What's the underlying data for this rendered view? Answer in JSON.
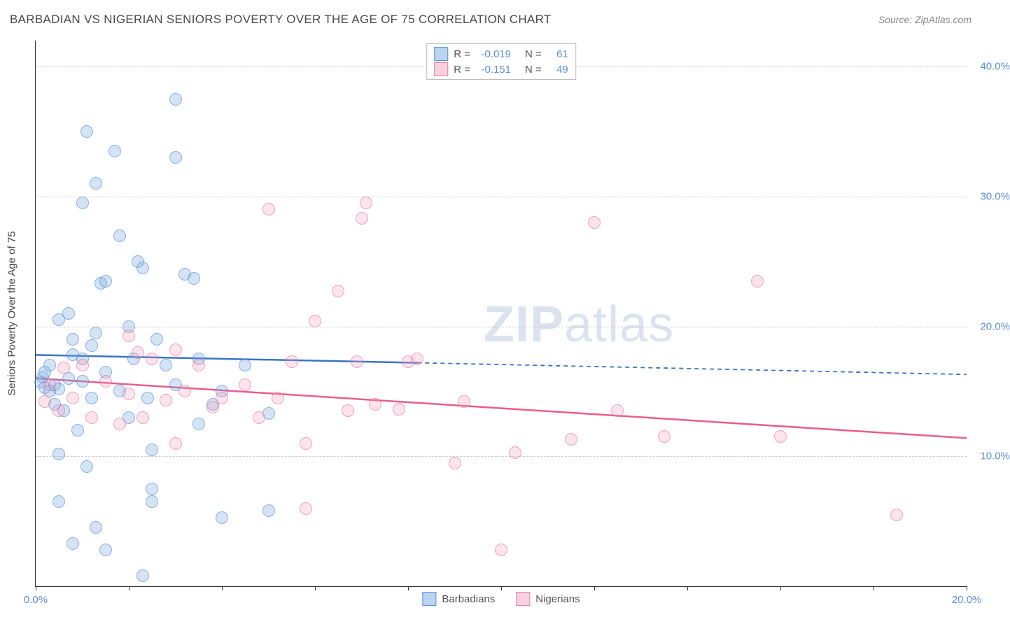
{
  "title": "BARBADIAN VS NIGERIAN SENIORS POVERTY OVER THE AGE OF 75 CORRELATION CHART",
  "source": "Source: ZipAtlas.com",
  "ylabel": "Seniors Poverty Over the Age of 75",
  "watermark_zip": "ZIP",
  "watermark_atlas": "atlas",
  "chart": {
    "type": "scatter",
    "background_color": "#ffffff",
    "grid_color": "#cccccc",
    "axis_color": "#333333",
    "xlim": [
      0,
      20
    ],
    "ylim": [
      0,
      42
    ],
    "xtick_positions": [
      0,
      2,
      4,
      6,
      8,
      10,
      12,
      14,
      16,
      18,
      20
    ],
    "xtick_labels": {
      "0": "0.0%",
      "20": "20.0%"
    },
    "ytick_positions": [
      10,
      20,
      30,
      40
    ],
    "ytick_labels": {
      "10": "10.0%",
      "20": "20.0%",
      "30": "30.0%",
      "40": "40.0%"
    },
    "marker_radius": 8,
    "label_fontsize": 15,
    "title_fontsize": 17,
    "axis_label_color": "#5b8fd6",
    "title_color": "#4a4a4a"
  },
  "series": [
    {
      "name": "Barbadians",
      "color_fill": "rgba(120,170,225,0.45)",
      "color_stroke": "#5b8fd6",
      "line_color": "#3b74c4",
      "R": "-0.019",
      "N": "61",
      "regression": {
        "x1": 0,
        "y1": 17.8,
        "x2": 8.2,
        "y2": 17.2,
        "x3": 20,
        "y3": 16.3,
        "dashed_from": 8.2
      },
      "points": [
        [
          0.1,
          15.7
        ],
        [
          0.15,
          16.1
        ],
        [
          0.2,
          15.3
        ],
        [
          0.2,
          16.5
        ],
        [
          0.3,
          15.0
        ],
        [
          0.3,
          17.0
        ],
        [
          0.4,
          14.0
        ],
        [
          0.4,
          15.5
        ],
        [
          0.5,
          15.2
        ],
        [
          0.5,
          20.5
        ],
        [
          0.6,
          13.5
        ],
        [
          0.7,
          16.0
        ],
        [
          0.7,
          21.0
        ],
        [
          0.8,
          19.0
        ],
        [
          0.9,
          12.0
        ],
        [
          1.0,
          17.5
        ],
        [
          1.0,
          29.5
        ],
        [
          1.1,
          35.0
        ],
        [
          1.1,
          9.2
        ],
        [
          1.2,
          14.5
        ],
        [
          1.3,
          19.5
        ],
        [
          1.3,
          31.0
        ],
        [
          1.4,
          23.3
        ],
        [
          1.5,
          23.5
        ],
        [
          1.5,
          16.5
        ],
        [
          1.7,
          33.5
        ],
        [
          1.8,
          15.0
        ],
        [
          1.8,
          27.0
        ],
        [
          2.0,
          20.0
        ],
        [
          2.0,
          13.0
        ],
        [
          2.1,
          17.5
        ],
        [
          2.2,
          25.0
        ],
        [
          2.3,
          24.5
        ],
        [
          2.4,
          14.5
        ],
        [
          2.5,
          10.5
        ],
        [
          2.5,
          6.5
        ],
        [
          2.6,
          19.0
        ],
        [
          2.8,
          17.0
        ],
        [
          3.0,
          15.5
        ],
        [
          3.0,
          33.0
        ],
        [
          3.2,
          24.0
        ],
        [
          3.4,
          23.7
        ],
        [
          3.5,
          12.5
        ],
        [
          3.5,
          17.5
        ],
        [
          3.0,
          37.5
        ],
        [
          3.8,
          14.0
        ],
        [
          4.0,
          15.0
        ],
        [
          4.0,
          5.3
        ],
        [
          0.8,
          3.3
        ],
        [
          1.5,
          2.8
        ],
        [
          2.3,
          0.8
        ],
        [
          2.5,
          7.5
        ],
        [
          0.5,
          6.5
        ],
        [
          4.5,
          17.0
        ],
        [
          5.0,
          5.8
        ],
        [
          5.0,
          13.3
        ],
        [
          1.3,
          4.5
        ],
        [
          0.5,
          10.2
        ],
        [
          0.8,
          17.8
        ],
        [
          1.0,
          15.8
        ],
        [
          1.2,
          18.5
        ]
      ]
    },
    {
      "name": "Nigerians",
      "color_fill": "rgba(245,160,190,0.4)",
      "color_stroke": "#e67ba3",
      "line_color": "#e85d8f",
      "R": "-0.151",
      "N": "49",
      "regression": {
        "x1": 0,
        "y1": 16.0,
        "x2": 20,
        "y2": 11.4,
        "dashed_from": null
      },
      "points": [
        [
          0.2,
          14.2
        ],
        [
          0.3,
          15.5
        ],
        [
          0.5,
          13.5
        ],
        [
          0.6,
          16.8
        ],
        [
          0.8,
          14.5
        ],
        [
          1.0,
          17.0
        ],
        [
          1.2,
          13.0
        ],
        [
          1.5,
          15.8
        ],
        [
          1.8,
          12.5
        ],
        [
          2.0,
          19.3
        ],
        [
          2.2,
          18.0
        ],
        [
          2.3,
          13.0
        ],
        [
          2.5,
          17.5
        ],
        [
          2.8,
          14.3
        ],
        [
          3.0,
          18.2
        ],
        [
          3.2,
          15.0
        ],
        [
          3.5,
          17.0
        ],
        [
          3.8,
          13.8
        ],
        [
          4.0,
          14.5
        ],
        [
          4.5,
          15.5
        ],
        [
          4.8,
          13.0
        ],
        [
          5.0,
          29.0
        ],
        [
          5.2,
          14.5
        ],
        [
          5.5,
          17.3
        ],
        [
          5.8,
          11.0
        ],
        [
          6.0,
          20.4
        ],
        [
          6.5,
          22.7
        ],
        [
          6.7,
          13.5
        ],
        [
          6.9,
          17.3
        ],
        [
          7.0,
          28.3
        ],
        [
          7.1,
          29.5
        ],
        [
          7.3,
          14.0
        ],
        [
          7.8,
          13.6
        ],
        [
          8.0,
          17.3
        ],
        [
          8.2,
          17.5
        ],
        [
          9.0,
          9.5
        ],
        [
          9.2,
          14.2
        ],
        [
          10.0,
          2.8
        ],
        [
          10.3,
          10.3
        ],
        [
          11.5,
          11.3
        ],
        [
          12.0,
          28.0
        ],
        [
          12.5,
          13.5
        ],
        [
          13.5,
          11.5
        ],
        [
          15.5,
          23.5
        ],
        [
          16.0,
          11.5
        ],
        [
          18.5,
          5.5
        ],
        [
          5.8,
          6.0
        ],
        [
          3.0,
          11.0
        ],
        [
          2.0,
          14.8
        ]
      ]
    }
  ],
  "legend_top": {
    "rows": [
      {
        "swatch": "blue",
        "r_label": "R =",
        "r_val": "-0.019",
        "n_label": "N =",
        "n_val": "61"
      },
      {
        "swatch": "pink",
        "r_label": "R =",
        "r_val": "-0.151",
        "n_label": "N =",
        "n_val": "49"
      }
    ]
  },
  "legend_bottom": {
    "items": [
      {
        "swatch": "blue",
        "label": "Barbadians"
      },
      {
        "swatch": "pink",
        "label": "Nigerians"
      }
    ]
  }
}
